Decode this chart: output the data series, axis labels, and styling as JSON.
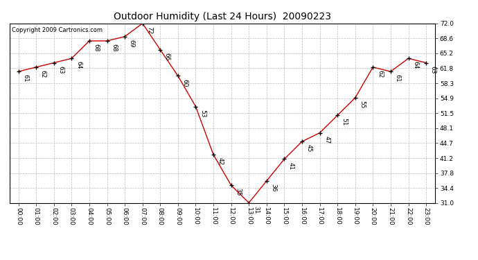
{
  "title": "Outdoor Humidity (Last 24 Hours)  20090223",
  "copyright": "Copyright 2009 Cartronics.com",
  "hours": [
    0,
    1,
    2,
    3,
    4,
    5,
    6,
    7,
    8,
    9,
    10,
    11,
    12,
    13,
    14,
    15,
    16,
    17,
    18,
    19,
    20,
    21,
    22,
    23
  ],
  "values": [
    61,
    62,
    63,
    64,
    68,
    68,
    69,
    72,
    66,
    60,
    53,
    42,
    35,
    31,
    36,
    41,
    45,
    47,
    51,
    55,
    62,
    61,
    64,
    63
  ],
  "ylim": [
    31.0,
    72.0
  ],
  "ytick_vals": [
    31.0,
    34.4,
    37.8,
    41.2,
    44.7,
    48.1,
    51.5,
    54.9,
    58.3,
    61.8,
    65.2,
    68.6,
    72.0
  ],
  "ytick_labels": [
    "31.0",
    "34.4",
    "37.8",
    "41.2",
    "44.7",
    "48.1",
    "51.5",
    "54.9",
    "58.3",
    "61.8",
    "65.2",
    "68.6",
    "72.0"
  ],
  "line_color": "#cc0000",
  "marker_color": "#000000",
  "bg_color": "#ffffff",
  "grid_color": "#bbbbbb",
  "annotation_fontsize": 6.5,
  "tick_fontsize": 6.5,
  "title_fontsize": 10,
  "copyright_fontsize": 6
}
